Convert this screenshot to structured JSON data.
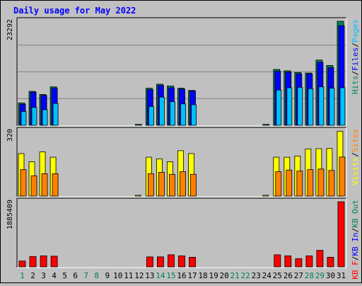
{
  "chart_data": {
    "type": "bar",
    "title": "Daily usage for May 2022",
    "categories": [
      "1",
      "2",
      "3",
      "4",
      "5",
      "6",
      "7",
      "8",
      "9",
      "10",
      "11",
      "12",
      "13",
      "14",
      "15",
      "16",
      "17",
      "18",
      "19",
      "20",
      "21",
      "22",
      "23",
      "24",
      "25",
      "26",
      "27",
      "28",
      "29",
      "30",
      "31"
    ],
    "weekend_days": [
      "1",
      "7",
      "8",
      "14",
      "15",
      "21",
      "22",
      "28",
      "29"
    ],
    "panels": [
      {
        "id": "hits",
        "max_label": "23292",
        "ylim": [
          0,
          23292
        ],
        "legend": [
          {
            "name": "Hits",
            "color": "#00805c"
          },
          {
            "name": "Files",
            "color": "#0000ff"
          },
          {
            "name": "Pages",
            "color": "#00c0ff"
          }
        ],
        "series": [
          {
            "name": "Hits",
            "color": "#00805c",
            "values": [
              5000,
              7600,
              6900,
              8600,
              0,
              0,
              0,
              0,
              0,
              0,
              0,
              210,
              8300,
              9200,
              8800,
              8300,
              7800,
              0,
              0,
              0,
              0,
              0,
              0,
              210,
              12500,
              12200,
              11800,
              11700,
              14600,
              13400,
              23292
            ]
          },
          {
            "name": "Files",
            "color": "#0000ff",
            "values": [
              4700,
              7400,
              6700,
              8300,
              0,
              0,
              0,
              0,
              0,
              0,
              0,
              0,
              8000,
              8900,
              8400,
              8100,
              7700,
              0,
              0,
              0,
              0,
              0,
              0,
              0,
              12100,
              11900,
              11500,
              11500,
              14100,
              12900,
              22300
            ]
          },
          {
            "name": "Pages",
            "color": "#00c0ff",
            "values": [
              3100,
              4000,
              3500,
              4900,
              0,
              0,
              0,
              0,
              0,
              0,
              0,
              0,
              4200,
              6300,
              5300,
              4800,
              4600,
              0,
              0,
              0,
              0,
              0,
              0,
              0,
              7900,
              8400,
              8500,
              8200,
              8600,
              8300,
              8400
            ]
          }
        ]
      },
      {
        "id": "visits",
        "max_label": "320",
        "ylim": [
          0,
          320
        ],
        "legend": [
          {
            "name": "Visits",
            "color": "#ffff00"
          },
          {
            "name": "Sites",
            "color": "#ff8000"
          }
        ],
        "series": [
          {
            "name": "Visits",
            "color": "#ffff00",
            "values": [
              209,
              169,
              217,
              191,
              0,
              0,
              0,
              0,
              0,
              0,
              0,
              4,
              191,
              183,
              169,
              223,
              209,
              0,
              0,
              0,
              0,
              0,
              0,
              4,
              191,
              191,
              197,
              232,
              233,
              234,
              319
            ]
          },
          {
            "name": "Sites",
            "color": "#ff8000",
            "values": [
              130,
              100,
              110,
              110,
              0,
              0,
              0,
              0,
              0,
              0,
              0,
              0,
              110,
              117,
              107,
              120,
              107,
              0,
              0,
              0,
              0,
              0,
              0,
              0,
              120,
              128,
              123,
              130,
              133,
              126,
              192
            ]
          }
        ]
      },
      {
        "id": "kb",
        "max_label": "1885409",
        "ylim": [
          0,
          1885409
        ],
        "legend": [
          {
            "name": "KB F",
            "color": "#ff0000"
          },
          {
            "name": "KB In",
            "color": "#0000ff"
          },
          {
            "name": "KB Out",
            "color": "#00805c"
          }
        ],
        "series": [
          {
            "name": "KB F",
            "color": "#ff0000",
            "values": [
              170000,
              300000,
              320000,
              310000,
              0,
              0,
              0,
              0,
              0,
              0,
              0,
              0,
              290000,
              290000,
              350000,
              320000,
              280000,
              0,
              0,
              0,
              0,
              0,
              0,
              0,
              350000,
              320000,
              240000,
              320000,
              480000,
              280000,
              1885409
            ]
          }
        ]
      }
    ]
  }
}
